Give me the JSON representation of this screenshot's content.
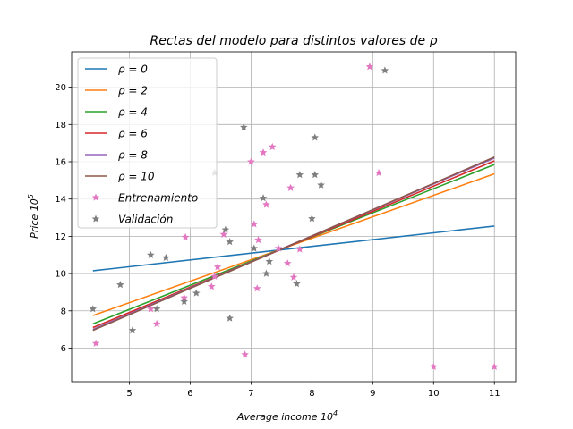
{
  "chart_data": {
    "type": "line",
    "title": "Rectas del modelo para distintos valores de ρ",
    "xlabel": "Average income 10",
    "xlabel_exp": "4",
    "ylabel": "Price 10",
    "ylabel_exp": "5",
    "xlim": [
      4.05,
      11.35
    ],
    "ylim": [
      4.2,
      21.9
    ],
    "xticks": [
      5,
      6,
      7,
      8,
      9,
      10,
      11
    ],
    "yticks": [
      6,
      8,
      10,
      12,
      14,
      16,
      18,
      20
    ],
    "grid": true,
    "legend_position": "top-left",
    "series": [
      {
        "name": "ρ  = 0",
        "greek": "ρ",
        "suffix": " = 0",
        "color": "#1f77b4",
        "x": [
          4.4,
          11.0
        ],
        "y": [
          10.15,
          12.55
        ]
      },
      {
        "name": "ρ  = 2",
        "greek": "ρ",
        "suffix": " = 2",
        "color": "#ff7f0e",
        "x": [
          4.4,
          11.0
        ],
        "y": [
          7.75,
          15.35
        ]
      },
      {
        "name": "ρ  = 4",
        "greek": "ρ",
        "suffix": " = 4",
        "color": "#2ca02c",
        "x": [
          4.4,
          11.0
        ],
        "y": [
          7.3,
          15.85
        ]
      },
      {
        "name": "ρ  = 6",
        "greek": "ρ",
        "suffix": " = 6",
        "color": "#d62728",
        "x": [
          4.4,
          11.0
        ],
        "y": [
          7.1,
          16.05
        ]
      },
      {
        "name": "ρ  = 8",
        "greek": "ρ",
        "suffix": " = 8",
        "color": "#9467bd",
        "x": [
          4.4,
          11.0
        ],
        "y": [
          7.0,
          16.2
        ]
      },
      {
        "name": "ρ  = 10",
        "greek": "ρ",
        "suffix": " = 10",
        "color": "#8c564b",
        "x": [
          4.4,
          11.0
        ],
        "y": [
          6.95,
          16.25
        ]
      }
    ],
    "scatter": [
      {
        "name": "Entrenamiento",
        "color": "#e377c2",
        "points": [
          [
            4.45,
            6.25
          ],
          [
            5.35,
            8.1
          ],
          [
            5.45,
            7.3
          ],
          [
            5.9,
            8.7
          ],
          [
            5.92,
            11.95
          ],
          [
            6.35,
            9.3
          ],
          [
            6.4,
            9.85
          ],
          [
            6.45,
            10.35
          ],
          [
            6.55,
            12.1
          ],
          [
            6.9,
            5.65
          ],
          [
            7.0,
            16.0
          ],
          [
            7.05,
            12.65
          ],
          [
            7.1,
            9.2
          ],
          [
            7.12,
            11.8
          ],
          [
            7.2,
            16.5
          ],
          [
            7.25,
            13.7
          ],
          [
            7.35,
            16.8
          ],
          [
            7.45,
            11.35
          ],
          [
            7.6,
            10.55
          ],
          [
            7.65,
            14.6
          ],
          [
            7.7,
            9.8
          ],
          [
            7.8,
            11.3
          ],
          [
            8.95,
            21.1
          ],
          [
            9.1,
            15.4
          ],
          [
            10.0,
            5.0
          ],
          [
            11.0,
            5.0
          ]
        ]
      },
      {
        "name": "Validación",
        "color": "#7f7f7f",
        "points": [
          [
            4.4,
            8.1
          ],
          [
            4.85,
            9.4
          ],
          [
            5.05,
            6.95
          ],
          [
            5.35,
            11.0
          ],
          [
            5.45,
            8.1
          ],
          [
            5.6,
            10.85
          ],
          [
            5.9,
            8.5
          ],
          [
            6.1,
            8.95
          ],
          [
            6.4,
            15.4
          ],
          [
            6.58,
            12.35
          ],
          [
            6.65,
            11.7
          ],
          [
            6.65,
            7.6
          ],
          [
            6.88,
            17.85
          ],
          [
            7.05,
            11.35
          ],
          [
            7.2,
            14.05
          ],
          [
            7.25,
            10.0
          ],
          [
            7.3,
            10.65
          ],
          [
            7.75,
            9.45
          ],
          [
            7.8,
            15.3
          ],
          [
            8.0,
            12.95
          ],
          [
            8.05,
            17.3
          ],
          [
            8.05,
            15.3
          ],
          [
            8.15,
            14.75
          ],
          [
            9.2,
            20.9
          ]
        ]
      }
    ]
  }
}
